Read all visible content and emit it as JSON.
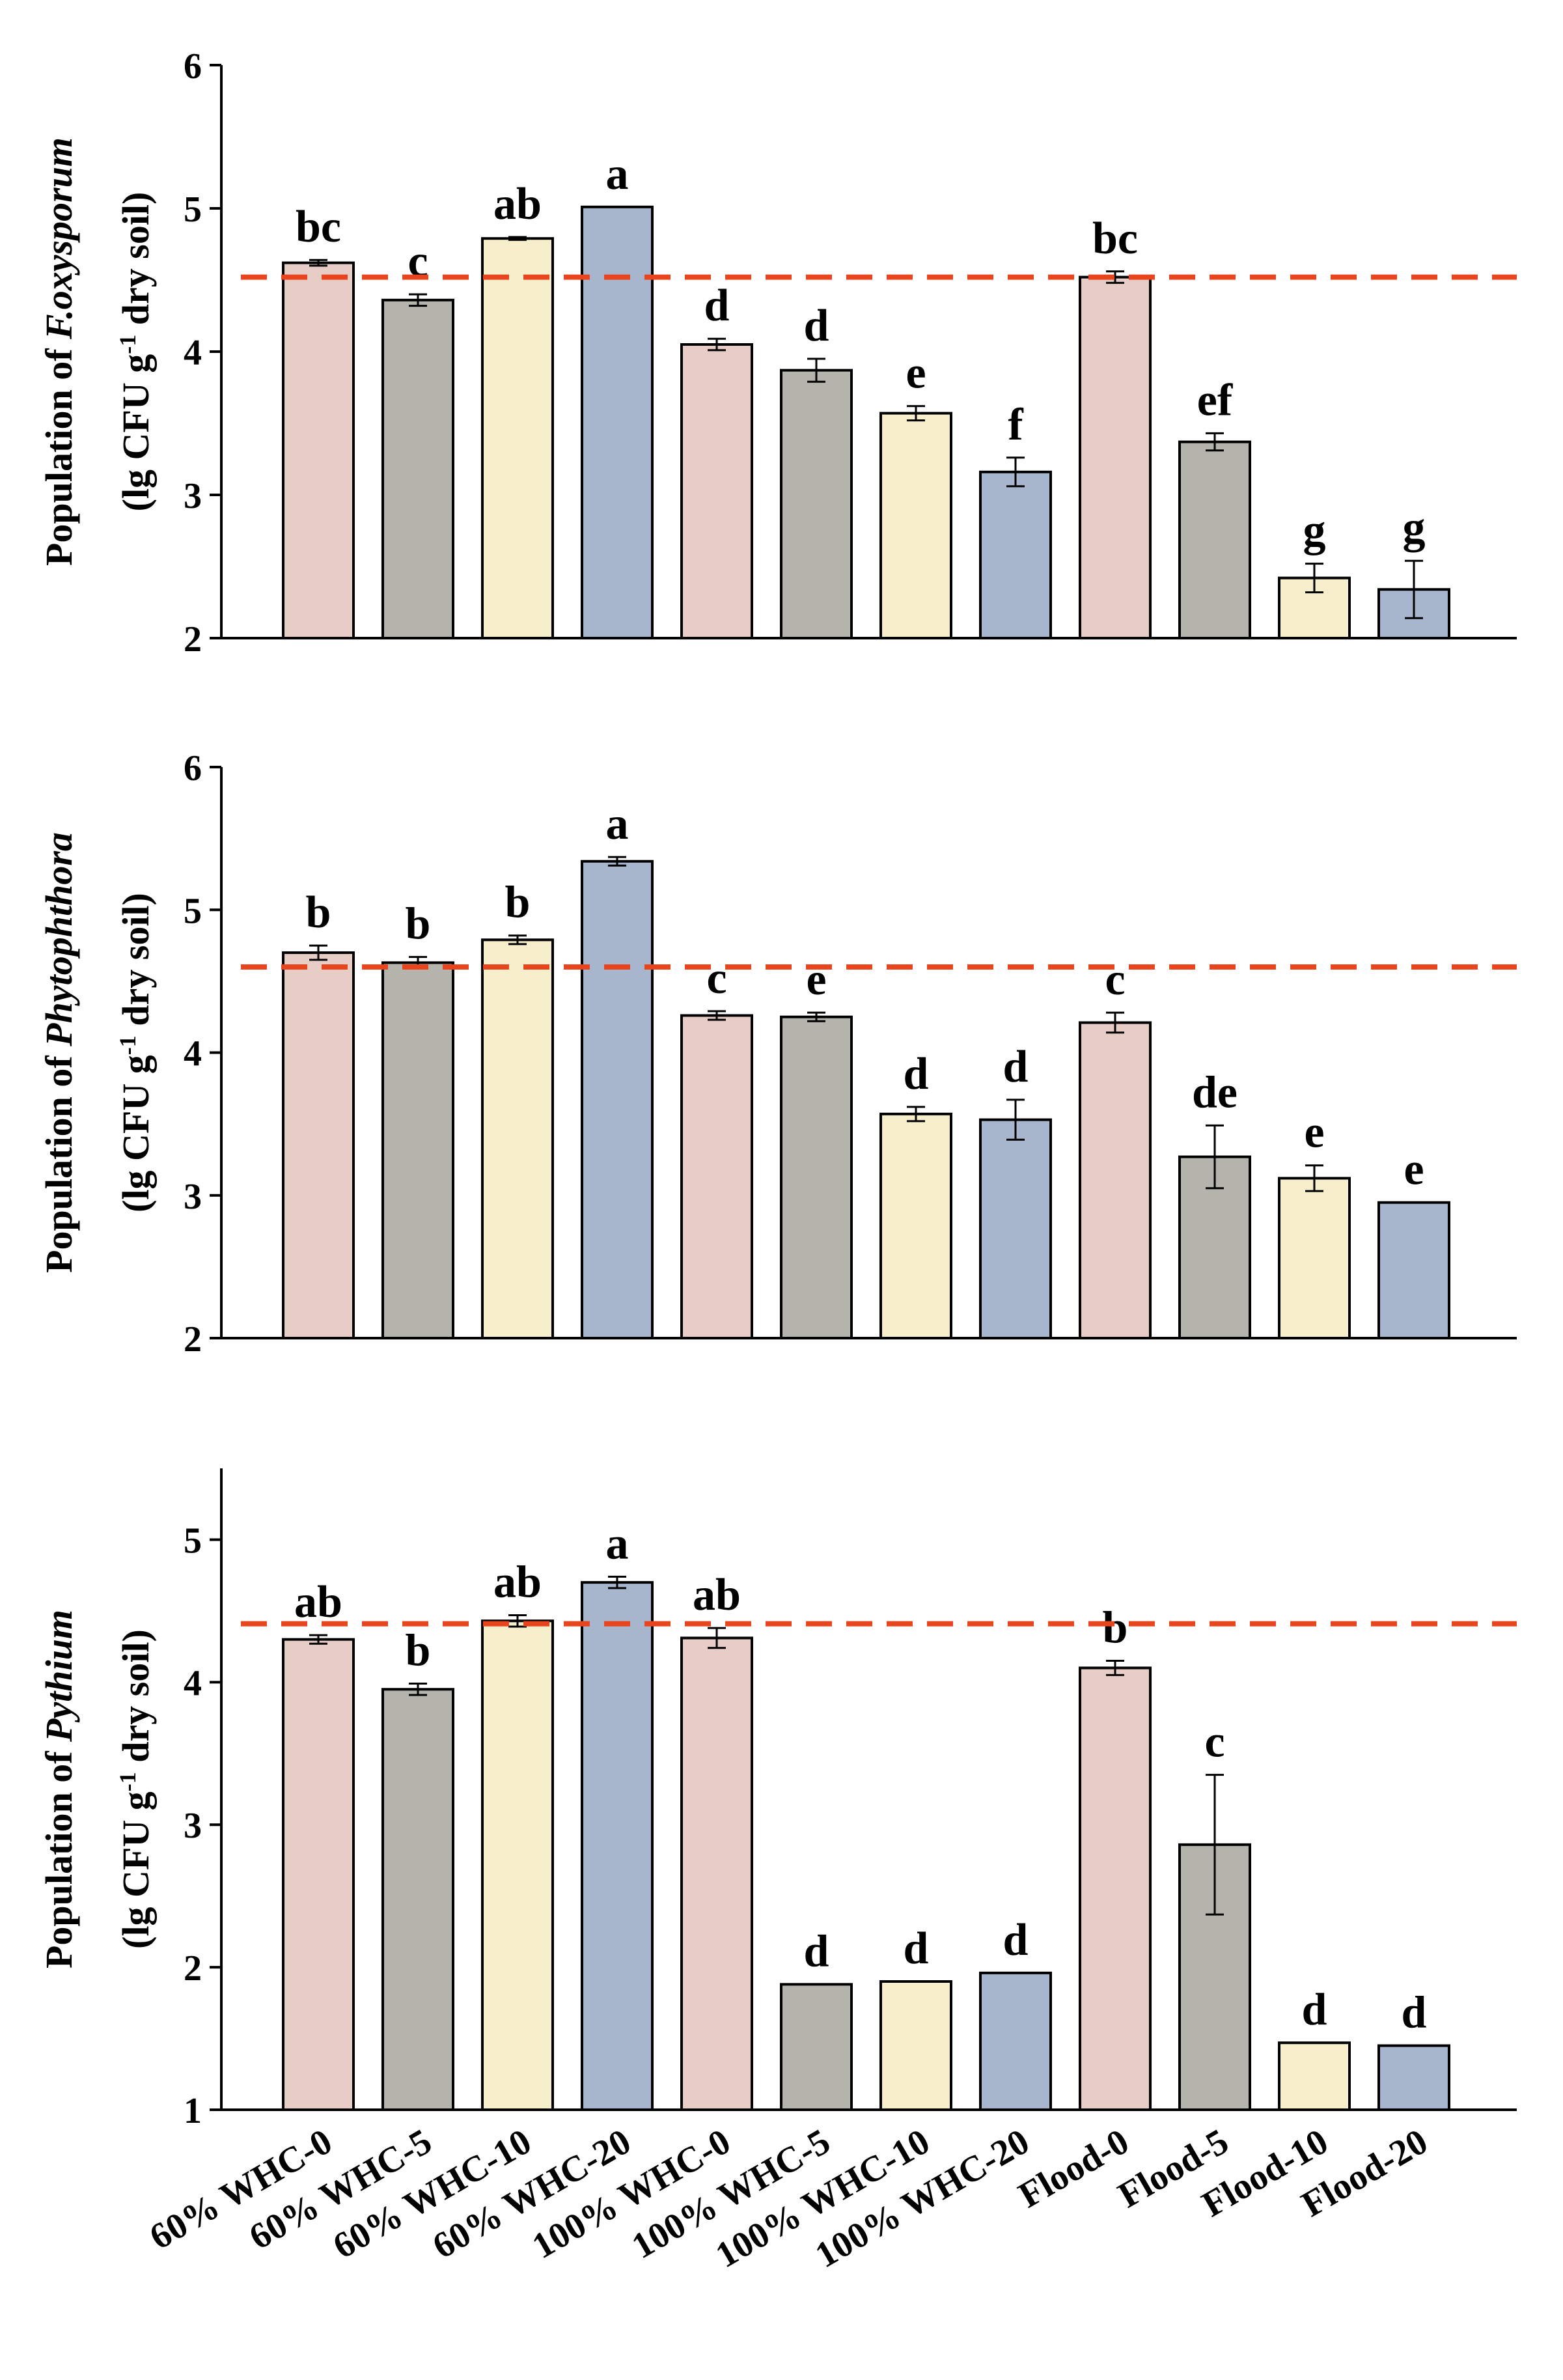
{
  "colors": {
    "bar_fill": [
      "#e8cdc6",
      "#b4b4ac",
      "#f7efcb",
      "#a7b6cc"
    ],
    "baseline": "#e8451f",
    "axis": "#000000"
  },
  "categories": [
    "60% WHC-0",
    "60% WHC-5",
    "60% WHC-10",
    "60% WHC-20",
    "100% WHC-0",
    "100% WHC-5",
    "100% WHC-10",
    "100% WHC-20",
    "Flood-0",
    "Flood-5",
    "Flood-10",
    "Flood-20"
  ],
  "chart_data": [
    {
      "type": "bar",
      "ylabel": {
        "line1": [
          {
            "text": "Population of "
          },
          {
            "text": "F.oxysporum",
            "italic": true
          }
        ],
        "line2": [
          {
            "text": "(lg CFU g"
          },
          {
            "text": "-1",
            "sup": true
          },
          {
            "text": " dry soil)"
          }
        ]
      },
      "ylim": [
        2,
        6
      ],
      "yticks": [
        2,
        3,
        4,
        5,
        6
      ],
      "values": [
        4.62,
        4.36,
        4.79,
        5.01,
        4.05,
        3.87,
        3.57,
        3.16,
        4.52,
        3.37,
        2.42,
        2.34
      ],
      "errors": [
        0.02,
        0.04,
        0.01,
        0.0,
        0.04,
        0.08,
        0.05,
        0.1,
        0.04,
        0.06,
        0.1,
        0.2
      ],
      "significance": [
        "bc",
        "c",
        "ab",
        "a",
        "d",
        "d",
        "e",
        "f",
        "bc",
        "ef",
        "g",
        "g"
      ],
      "baseline_y": 4.52
    },
    {
      "type": "bar",
      "ylabel": {
        "line1": [
          {
            "text": "Population of "
          },
          {
            "text": "Phytophthora",
            "italic": true
          }
        ],
        "line2": [
          {
            "text": "(lg CFU g"
          },
          {
            "text": "-1",
            "sup": true
          },
          {
            "text": " dry soil)"
          }
        ]
      },
      "ylim": [
        2,
        6
      ],
      "yticks": [
        2,
        3,
        4,
        5,
        6
      ],
      "values": [
        4.7,
        4.63,
        4.79,
        5.34,
        4.26,
        4.25,
        3.57,
        3.53,
        4.21,
        3.27,
        3.12,
        2.95
      ],
      "errors": [
        0.05,
        0.04,
        0.03,
        0.03,
        0.03,
        0.03,
        0.05,
        0.14,
        0.07,
        0.22,
        0.09,
        0.0
      ],
      "significance": [
        "b",
        "b",
        "b",
        "a",
        "c",
        "e",
        "d",
        "d",
        "c",
        "de",
        "e",
        "e"
      ],
      "baseline_y": 4.6
    },
    {
      "type": "bar",
      "ylabel": {
        "line1": [
          {
            "text": "Population of "
          },
          {
            "text": "Pythium",
            "italic": true
          }
        ],
        "line2": [
          {
            "text": "(lg CFU g"
          },
          {
            "text": "-1",
            "sup": true
          },
          {
            "text": " dry soil)"
          }
        ]
      },
      "ylim": [
        1,
        5.5
      ],
      "yticks": [
        1,
        2,
        3,
        4,
        5
      ],
      "values": [
        4.3,
        3.95,
        4.43,
        4.7,
        4.31,
        1.88,
        1.9,
        1.96,
        4.1,
        2.86,
        1.47,
        1.45
      ],
      "errors": [
        0.03,
        0.04,
        0.04,
        0.04,
        0.07,
        0.0,
        0.0,
        0.0,
        0.05,
        0.49,
        0.0,
        0.0
      ],
      "significance": [
        "ab",
        "b",
        "ab",
        "a",
        "ab",
        "d",
        "d",
        "d",
        "b",
        "c",
        "d",
        "d"
      ],
      "baseline_y": 4.41
    }
  ]
}
